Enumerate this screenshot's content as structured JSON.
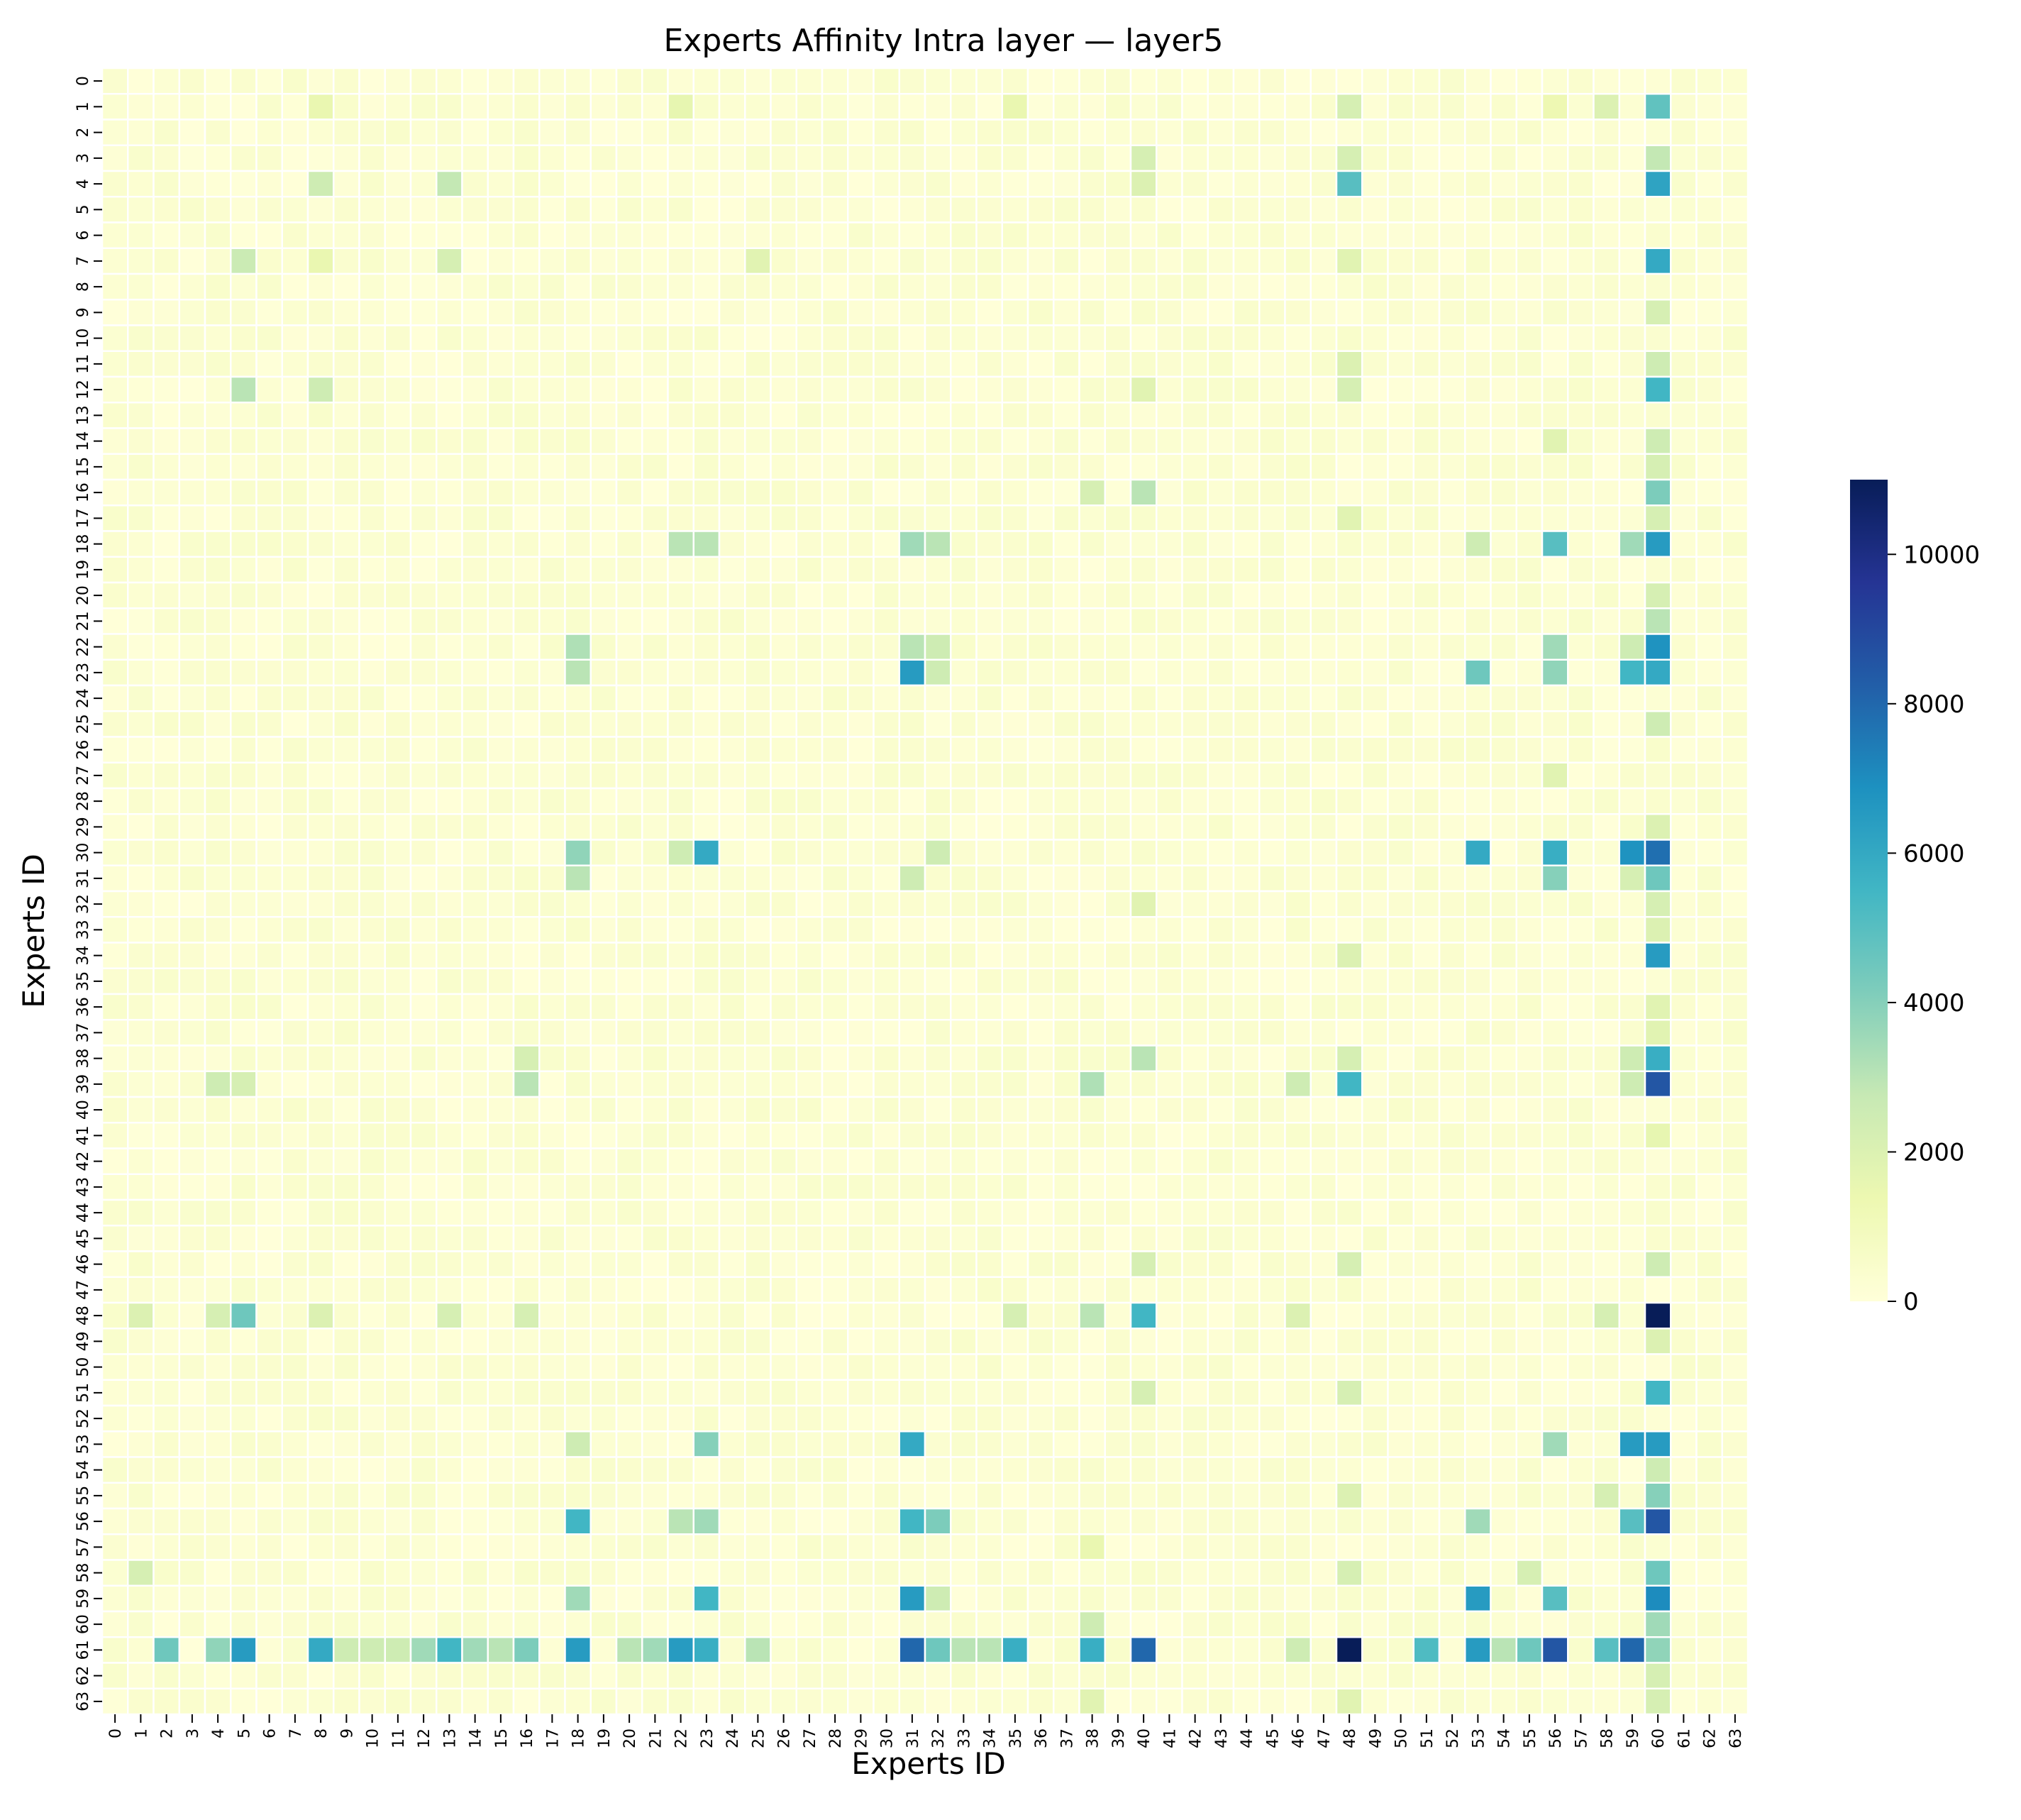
{
  "chart_data": {
    "type": "heatmap",
    "title": "Experts Affinity Intra layer — layer5",
    "xlabel": "Experts ID",
    "ylabel": "Experts ID",
    "x_tick_labels": [
      "0",
      "1",
      "2",
      "3",
      "4",
      "5",
      "6",
      "7",
      "8",
      "9",
      "10",
      "11",
      "12",
      "13",
      "14",
      "15",
      "16",
      "17",
      "18",
      "19",
      "20",
      "21",
      "22",
      "23",
      "24",
      "25",
      "26",
      "27",
      "28",
      "29",
      "30",
      "31",
      "32",
      "33",
      "34",
      "35",
      "36",
      "37",
      "38",
      "39",
      "40",
      "41",
      "42",
      "43",
      "44",
      "45",
      "46",
      "47",
      "48",
      "49",
      "50",
      "51",
      "52",
      "53",
      "54",
      "55",
      "56",
      "57",
      "58",
      "59",
      "60",
      "61",
      "62",
      "63"
    ],
    "y_tick_labels": [
      "0",
      "1",
      "2",
      "3",
      "4",
      "5",
      "6",
      "7",
      "8",
      "9",
      "10",
      "11",
      "12",
      "13",
      "14",
      "15",
      "16",
      "17",
      "18",
      "19",
      "20",
      "21",
      "22",
      "23",
      "24",
      "25",
      "26",
      "27",
      "28",
      "29",
      "30",
      "31",
      "32",
      "33",
      "34",
      "35",
      "36",
      "37",
      "38",
      "39",
      "40",
      "41",
      "42",
      "43",
      "44",
      "45",
      "46",
      "47",
      "48",
      "49",
      "50",
      "51",
      "52",
      "53",
      "54",
      "55",
      "56",
      "57",
      "58",
      "59",
      "60",
      "61",
      "62",
      "63"
    ],
    "grid_size": 64,
    "colormap": "YlGnBu",
    "vmin": 0,
    "vmax": 11000,
    "colorbar_ticks": [
      0,
      2000,
      4000,
      6000,
      8000,
      10000
    ],
    "colorbar_tick_labels": [
      "0",
      "2000",
      "4000",
      "6000",
      "8000",
      "10000"
    ],
    "cell_border_color": "#ffffff",
    "base_value": 300,
    "cells": [
      [
        1,
        60,
        4800
      ],
      [
        1,
        48,
        2200
      ],
      [
        1,
        58,
        2000
      ],
      [
        1,
        8,
        1500
      ],
      [
        1,
        22,
        1600
      ],
      [
        1,
        35,
        1500
      ],
      [
        1,
        56,
        1300
      ],
      [
        3,
        60,
        2800
      ],
      [
        3,
        48,
        2200
      ],
      [
        3,
        40,
        2200
      ],
      [
        4,
        60,
        6200
      ],
      [
        4,
        48,
        5000
      ],
      [
        4,
        8,
        2500
      ],
      [
        4,
        13,
        2800
      ],
      [
        4,
        40,
        2000
      ],
      [
        7,
        60,
        6000
      ],
      [
        7,
        5,
        2600
      ],
      [
        7,
        13,
        2200
      ],
      [
        7,
        8,
        1500
      ],
      [
        7,
        48,
        1800
      ],
      [
        7,
        25,
        1800
      ],
      [
        9,
        60,
        2200
      ],
      [
        11,
        60,
        2500
      ],
      [
        11,
        48,
        2000
      ],
      [
        12,
        60,
        5500
      ],
      [
        12,
        5,
        3000
      ],
      [
        12,
        8,
        2500
      ],
      [
        12,
        48,
        2200
      ],
      [
        12,
        40,
        1800
      ],
      [
        14,
        60,
        2500
      ],
      [
        14,
        56,
        1800
      ],
      [
        15,
        60,
        2200
      ],
      [
        16,
        60,
        4200
      ],
      [
        16,
        40,
        3000
      ],
      [
        16,
        38,
        2200
      ],
      [
        17,
        60,
        2200
      ],
      [
        17,
        48,
        1800
      ],
      [
        18,
        60,
        6500
      ],
      [
        18,
        22,
        3000
      ],
      [
        18,
        23,
        3000
      ],
      [
        18,
        31,
        3500
      ],
      [
        18,
        32,
        3000
      ],
      [
        18,
        53,
        2500
      ],
      [
        18,
        56,
        5000
      ],
      [
        18,
        59,
        3500
      ],
      [
        20,
        60,
        2200
      ],
      [
        21,
        60,
        3000
      ],
      [
        22,
        60,
        6800
      ],
      [
        22,
        18,
        3200
      ],
      [
        22,
        31,
        3000
      ],
      [
        22,
        32,
        2500
      ],
      [
        22,
        56,
        3500
      ],
      [
        22,
        59,
        2500
      ],
      [
        23,
        60,
        6000
      ],
      [
        23,
        18,
        3000
      ],
      [
        23,
        31,
        6500
      ],
      [
        23,
        32,
        2500
      ],
      [
        23,
        53,
        4500
      ],
      [
        23,
        56,
        3800
      ],
      [
        23,
        59,
        5500
      ],
      [
        25,
        60,
        2500
      ],
      [
        27,
        56,
        1800
      ],
      [
        29,
        60,
        2000
      ],
      [
        30,
        60,
        7800
      ],
      [
        30,
        18,
        3800
      ],
      [
        30,
        22,
        2500
      ],
      [
        30,
        23,
        6000
      ],
      [
        30,
        32,
        2500
      ],
      [
        30,
        53,
        6000
      ],
      [
        30,
        56,
        5800
      ],
      [
        30,
        59,
        6800
      ],
      [
        31,
        60,
        4500
      ],
      [
        31,
        18,
        3000
      ],
      [
        31,
        31,
        2500
      ],
      [
        31,
        56,
        4000
      ],
      [
        31,
        59,
        2200
      ],
      [
        32,
        60,
        2200
      ],
      [
        32,
        40,
        1800
      ],
      [
        33,
        60,
        2000
      ],
      [
        34,
        60,
        6500
      ],
      [
        34,
        48,
        2000
      ],
      [
        36,
        60,
        1800
      ],
      [
        37,
        60,
        1800
      ],
      [
        38,
        60,
        5800
      ],
      [
        38,
        40,
        3000
      ],
      [
        38,
        48,
        2200
      ],
      [
        38,
        59,
        2500
      ],
      [
        38,
        16,
        2200
      ],
      [
        39,
        60,
        8500
      ],
      [
        39,
        48,
        5500
      ],
      [
        39,
        38,
        3200
      ],
      [
        39,
        16,
        3000
      ],
      [
        39,
        4,
        2500
      ],
      [
        39,
        5,
        2200
      ],
      [
        39,
        46,
        2500
      ],
      [
        39,
        59,
        2500
      ],
      [
        41,
        60,
        1600
      ],
      [
        46,
        60,
        2500
      ],
      [
        46,
        48,
        2200
      ],
      [
        46,
        40,
        2200
      ],
      [
        48,
        60,
        11000
      ],
      [
        48,
        5,
        4500
      ],
      [
        48,
        40,
        5500
      ],
      [
        48,
        38,
        3000
      ],
      [
        48,
        4,
        2200
      ],
      [
        48,
        1,
        2000
      ],
      [
        48,
        8,
        2000
      ],
      [
        48,
        13,
        2200
      ],
      [
        48,
        16,
        2200
      ],
      [
        48,
        35,
        2200
      ],
      [
        48,
        46,
        2000
      ],
      [
        48,
        58,
        2200
      ],
      [
        49,
        60,
        2000
      ],
      [
        51,
        60,
        5500
      ],
      [
        51,
        40,
        2200
      ],
      [
        51,
        48,
        2200
      ],
      [
        53,
        60,
        6500
      ],
      [
        53,
        18,
        2500
      ],
      [
        53,
        23,
        4000
      ],
      [
        53,
        31,
        6000
      ],
      [
        53,
        56,
        3500
      ],
      [
        53,
        59,
        6500
      ],
      [
        54,
        60,
        2500
      ],
      [
        55,
        60,
        4000
      ],
      [
        55,
        48,
        2000
      ],
      [
        55,
        58,
        2200
      ],
      [
        56,
        60,
        8500
      ],
      [
        56,
        18,
        5500
      ],
      [
        56,
        22,
        3000
      ],
      [
        56,
        23,
        3500
      ],
      [
        56,
        31,
        5500
      ],
      [
        56,
        32,
        4200
      ],
      [
        56,
        53,
        3500
      ],
      [
        56,
        59,
        5000
      ],
      [
        57,
        38,
        1500
      ],
      [
        58,
        60,
        4500
      ],
      [
        58,
        1,
        2200
      ],
      [
        58,
        48,
        2200
      ],
      [
        58,
        55,
        2200
      ],
      [
        59,
        60,
        7000
      ],
      [
        59,
        18,
        3500
      ],
      [
        59,
        23,
        5500
      ],
      [
        59,
        31,
        6500
      ],
      [
        59,
        32,
        2500
      ],
      [
        59,
        53,
        6500
      ],
      [
        59,
        56,
        5000
      ],
      [
        60,
        60,
        3500
      ],
      [
        60,
        38,
        2500
      ],
      [
        61,
        48,
        11000
      ],
      [
        61,
        56,
        8500
      ],
      [
        61,
        59,
        8000
      ],
      [
        61,
        40,
        8000
      ],
      [
        61,
        31,
        8000
      ],
      [
        61,
        22,
        6500
      ],
      [
        61,
        18,
        6500
      ],
      [
        61,
        5,
        6500
      ],
      [
        61,
        8,
        6000
      ],
      [
        61,
        38,
        5800
      ],
      [
        61,
        35,
        5800
      ],
      [
        61,
        53,
        6500
      ],
      [
        61,
        23,
        5800
      ],
      [
        61,
        13,
        5500
      ],
      [
        61,
        51,
        5200
      ],
      [
        61,
        58,
        5000
      ],
      [
        61,
        2,
        4500
      ],
      [
        61,
        32,
        4500
      ],
      [
        61,
        16,
        4200
      ],
      [
        61,
        55,
        4500
      ],
      [
        61,
        4,
        3800
      ],
      [
        61,
        12,
        3500
      ],
      [
        61,
        14,
        3500
      ],
      [
        61,
        21,
        3500
      ],
      [
        61,
        60,
        3800
      ],
      [
        61,
        20,
        3000
      ],
      [
        61,
        54,
        3000
      ],
      [
        61,
        25,
        3000
      ],
      [
        61,
        33,
        3000
      ],
      [
        61,
        34,
        3000
      ],
      [
        61,
        15,
        3000
      ],
      [
        61,
        10,
        2500
      ],
      [
        61,
        11,
        2500
      ],
      [
        61,
        46,
        2500
      ],
      [
        61,
        9,
        2500
      ],
      [
        62,
        60,
        2200
      ],
      [
        63,
        60,
        2200
      ],
      [
        63,
        38,
        1800
      ],
      [
        63,
        48,
        1800
      ]
    ]
  }
}
